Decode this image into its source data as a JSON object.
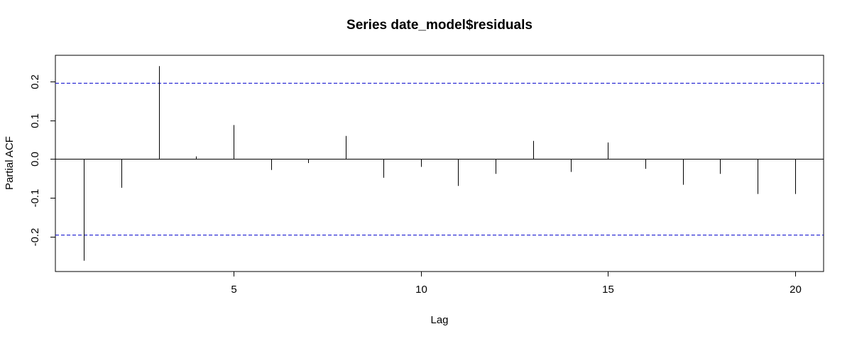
{
  "chart_data": {
    "type": "bar",
    "title": "Series  date_model$residuals",
    "xlabel": "Lag",
    "ylabel": "Partial ACF",
    "x": [
      1,
      2,
      3,
      4,
      5,
      6,
      7,
      8,
      9,
      10,
      11,
      12,
      13,
      14,
      15,
      16,
      17,
      18,
      19,
      20
    ],
    "values": [
      -0.262,
      -0.074,
      0.24,
      0.007,
      0.088,
      -0.028,
      -0.01,
      0.06,
      -0.048,
      -0.02,
      -0.069,
      -0.038,
      0.047,
      -0.033,
      0.043,
      -0.025,
      -0.066,
      -0.038,
      -0.09,
      -0.09
    ],
    "xlim": [
      0.24,
      20.76
    ],
    "ylim": [
      -0.29,
      0.268
    ],
    "xticks": [
      "5",
      "10",
      "15",
      "20"
    ],
    "yticks": [
      "-0.2",
      "-0.1",
      "0.0",
      "0.1",
      "0.2"
    ],
    "confidence_bound": 0.196,
    "zero_line": true,
    "grid": false,
    "colors": {
      "bars": "#000000",
      "confidence_lines": "#0000cc",
      "axes": "#000000"
    }
  }
}
